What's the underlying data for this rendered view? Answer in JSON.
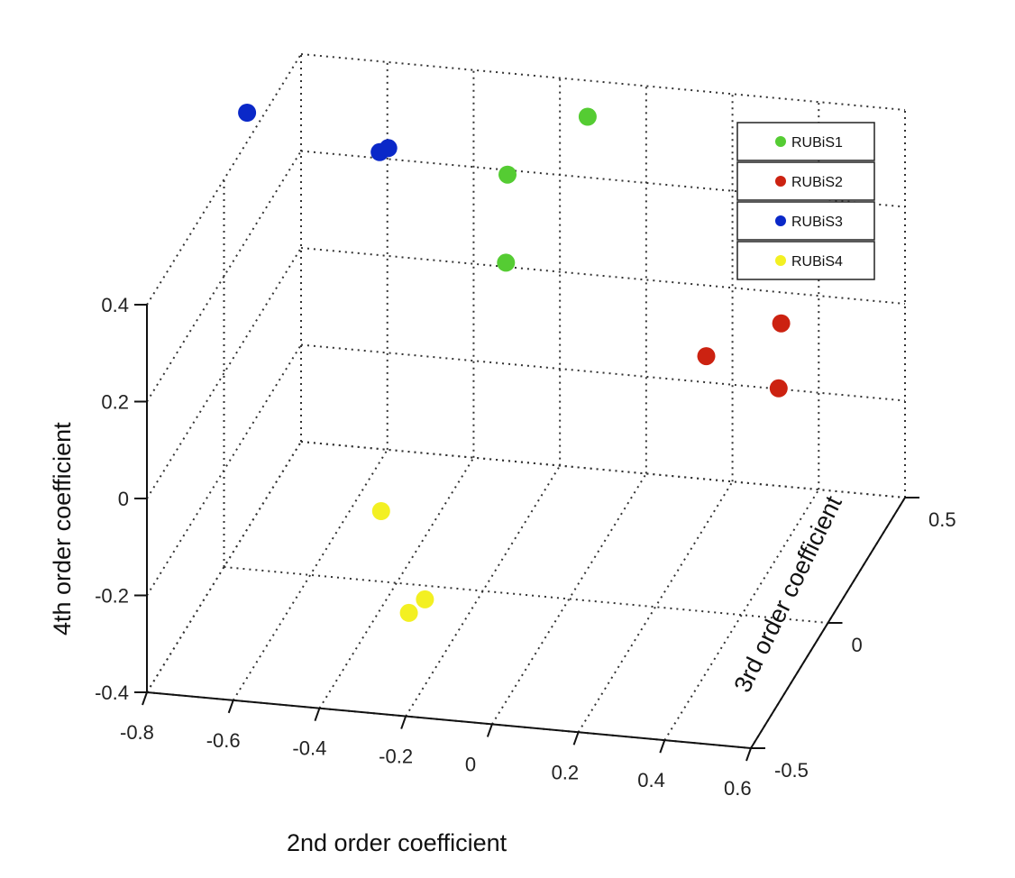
{
  "chart_data": {
    "type": "scatter3d",
    "xlabel": "2nd order coefficient",
    "ylabel": "3rd order coefficient",
    "zlabel": "4th order coefficient",
    "xlim": [
      -0.8,
      0.6
    ],
    "ylim": [
      -0.5,
      0.5
    ],
    "zlim": [
      -0.4,
      0.4
    ],
    "x_ticks": [
      -0.8,
      -0.6,
      -0.4,
      -0.2,
      0,
      0.2,
      0.4,
      0.6
    ],
    "x_tick_labels": [
      "-0.8",
      "-0.6",
      "-0.4",
      "-0.2",
      "0",
      "0.2",
      "0.4",
      "0.6"
    ],
    "y_ticks": [
      -0.5,
      0,
      0.5
    ],
    "y_tick_labels": [
      "-0.5",
      "0",
      "0.5"
    ],
    "z_ticks": [
      -0.4,
      -0.2,
      0,
      0.2,
      0.4
    ],
    "z_tick_labels": [
      "-0.4",
      "-0.2",
      "0",
      "0.2",
      "0.4"
    ],
    "grid": true,
    "legend_position": "top-right",
    "series": [
      {
        "name": "RUBiS1",
        "color": "#55cc33",
        "points": [
          [
            -0.25,
            0.3,
            0.3
          ],
          [
            -0.1,
            0.4,
            0.38
          ],
          [
            -0.2,
            0.15,
            0.2
          ]
        ]
      },
      {
        "name": "RUBiS2",
        "color": "#cc2211",
        "points": [
          [
            0.3,
            0.05,
            0.1
          ],
          [
            0.42,
            0.2,
            0.1
          ],
          [
            0.45,
            0.1,
            0.02
          ]
        ]
      },
      {
        "name": "RUBiS3",
        "color": "#0a28c8",
        "points": [
          [
            -0.8,
            0.15,
            0.46
          ],
          [
            -0.6,
            0.45,
            0.24
          ],
          [
            -0.58,
            0.45,
            0.25
          ]
        ]
      },
      {
        "name": "RUBiS4",
        "color": "#f3f022",
        "points": [
          [
            -0.4,
            -0.1,
            -0.2
          ],
          [
            -0.3,
            -0.2,
            -0.35
          ],
          [
            -0.27,
            -0.18,
            -0.33
          ]
        ]
      }
    ]
  }
}
